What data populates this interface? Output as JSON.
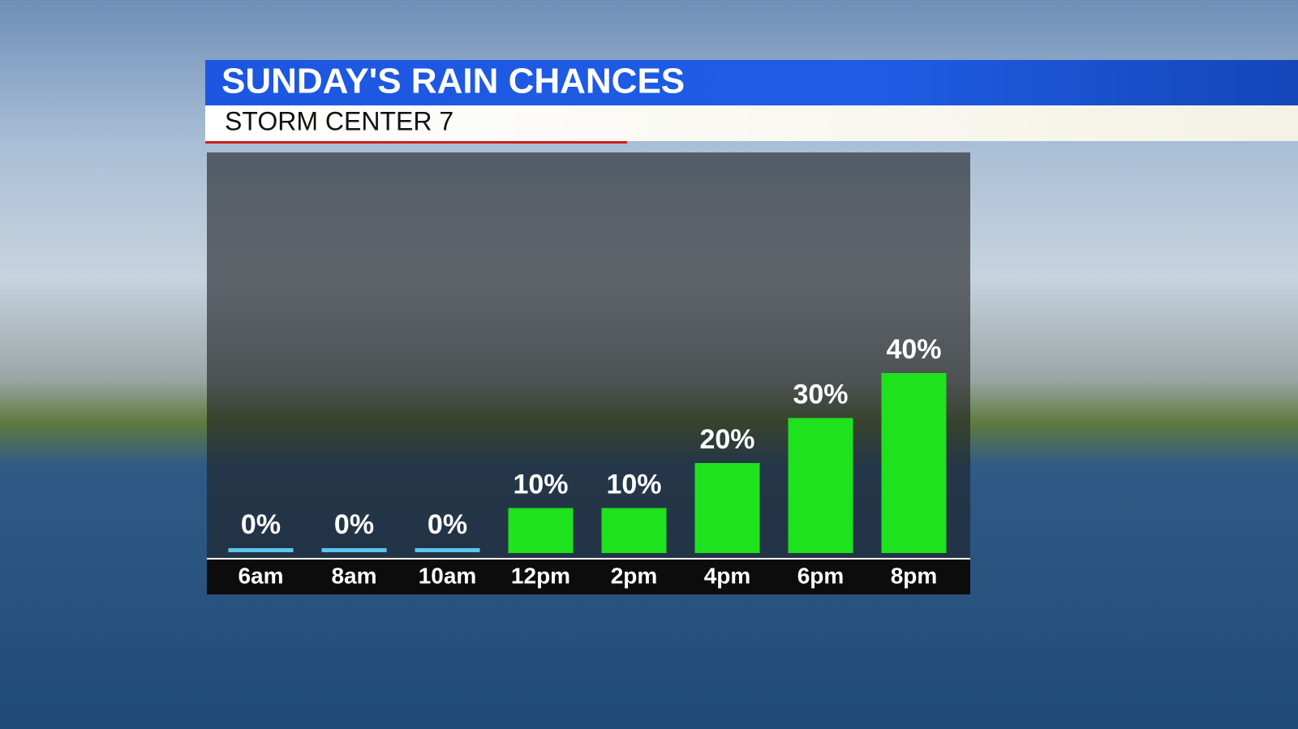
{
  "chart_data": {
    "type": "bar",
    "title": "SUNDAY'S RAIN CHANCES",
    "subtitle": "STORM CENTER 7",
    "categories": [
      "6am",
      "8am",
      "10am",
      "12pm",
      "2pm",
      "4pm",
      "6pm",
      "8pm"
    ],
    "values": [
      0,
      0,
      0,
      10,
      10,
      20,
      30,
      40
    ],
    "value_labels": [
      "0%",
      "0%",
      "0%",
      "10%",
      "10%",
      "20%",
      "30%",
      "40%"
    ],
    "color": "#1ee21e",
    "zero_color": "#5ec6ee"
  }
}
